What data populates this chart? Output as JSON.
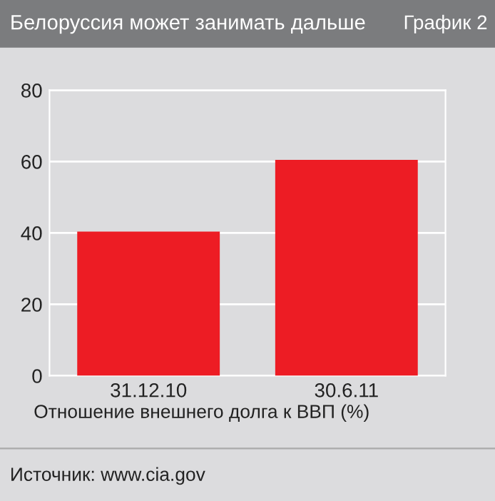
{
  "chart_data": {
    "type": "bar",
    "title": "Белоруссия может занимать дальше",
    "subtitle": "График 2",
    "categories": [
      "31.12.10",
      "30.6.11"
    ],
    "values": [
      40.4,
      60.5
    ],
    "color": "#ed1c24",
    "xlabel": "Отношение внешнего долга к ВВП (%)",
    "ylim": [
      0,
      80
    ],
    "yticks": [
      0,
      20,
      40,
      60,
      80
    ],
    "grid": "y",
    "annotations": [
      "Источник: www.cia.gov"
    ]
  }
}
